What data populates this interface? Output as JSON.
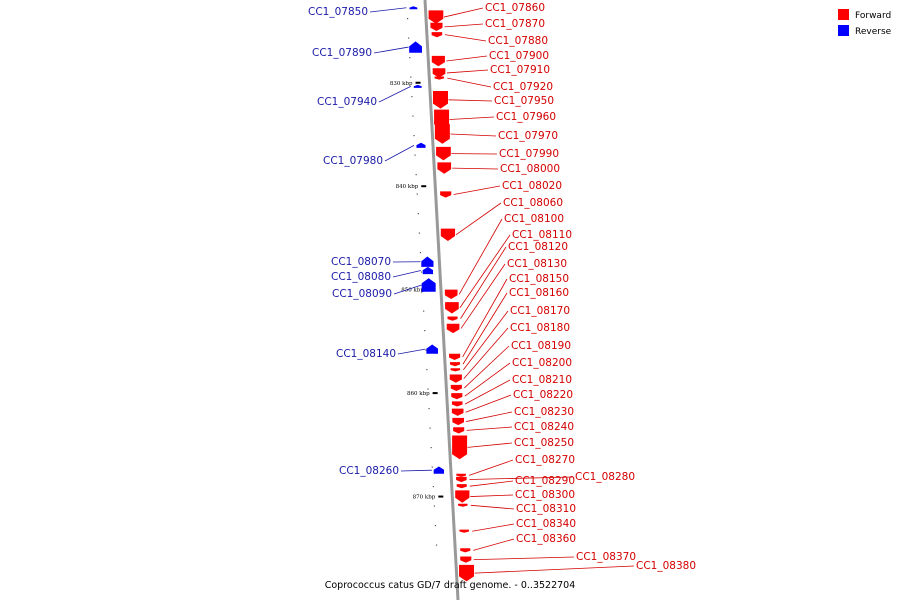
{
  "caption": "Coprococcus catus GD/7 draft genome. - 0..3522704",
  "legend": [
    {
      "label": "Forward",
      "color": "#ff0000"
    },
    {
      "label": "Reverse",
      "color": "#0000ff"
    }
  ],
  "colors": {
    "forward": "#ff0000",
    "reverse": "#0000ff",
    "forward_label": "#d40000",
    "reverse_label": "#1a1aa8",
    "axis": "#999999"
  },
  "ticks": [
    {
      "label": "830 kbp",
      "kbp": 830
    },
    {
      "label": "840 kbp",
      "kbp": 840
    },
    {
      "label": "850 kbp",
      "kbp": 850
    },
    {
      "label": "860 kbp",
      "kbp": 860
    },
    {
      "label": "870 kbp",
      "kbp": 870
    }
  ],
  "reverse_genes": [
    {
      "id": "CC1_07850",
      "kbp": 822.6,
      "len_kbp": 0.3
    },
    {
      "id": "CC1_07890",
      "kbp": 826.0,
      "len_kbp": 1.1
    },
    {
      "id": "CC1_07940",
      "kbp": 830.2,
      "len_kbp": 0.3
    },
    {
      "id": "CC1_07980",
      "kbp": 835.8,
      "len_kbp": 0.5
    },
    {
      "id": "CC1_08070",
      "kbp": 846.8,
      "len_kbp": 1.0
    },
    {
      "id": "CC1_08080",
      "kbp": 847.8,
      "len_kbp": 0.7
    },
    {
      "id": "CC1_08090",
      "kbp": 848.9,
      "len_kbp": 1.3
    },
    {
      "id": "CC1_08140",
      "kbp": 855.3,
      "len_kbp": 0.9
    },
    {
      "id": "CC1_08260",
      "kbp": 867.1,
      "len_kbp": 0.7
    }
  ],
  "forward_genes": [
    {
      "id": "CC1_07860",
      "kbp": 823.0,
      "len_kbp": 1.3
    },
    {
      "id": "CC1_07870",
      "kbp": 824.2,
      "len_kbp": 0.8
    },
    {
      "id": "CC1_07880",
      "kbp": 825.1,
      "len_kbp": 0.5
    },
    {
      "id": "CC1_07900",
      "kbp": 827.4,
      "len_kbp": 1.0
    },
    {
      "id": "CC1_07910",
      "kbp": 828.6,
      "len_kbp": 0.9
    },
    {
      "id": "CC1_07920",
      "kbp": 829.4,
      "len_kbp": 0.3
    },
    {
      "id": "CC1_07950",
      "kbp": 830.8,
      "len_kbp": 1.7
    },
    {
      "id": "CC1_07960",
      "kbp": 832.6,
      "len_kbp": 1.9
    },
    {
      "id": "CC1_07970",
      "kbp": 834.0,
      "len_kbp": 1.9
    },
    {
      "id": "CC1_07990",
      "kbp": 836.2,
      "len_kbp": 1.3
    },
    {
      "id": "CC1_08000",
      "kbp": 837.7,
      "len_kbp": 1.1
    },
    {
      "id": "CC1_08020",
      "kbp": 840.5,
      "len_kbp": 0.6
    },
    {
      "id": "CC1_08060",
      "kbp": 844.1,
      "len_kbp": 1.2
    },
    {
      "id": "CC1_08100",
      "kbp": 850.0,
      "len_kbp": 0.9
    },
    {
      "id": "CC1_08110",
      "kbp": 851.2,
      "len_kbp": 1.1
    },
    {
      "id": "CC1_08120",
      "kbp": 852.6,
      "len_kbp": 0.4
    },
    {
      "id": "CC1_08130",
      "kbp": 853.3,
      "len_kbp": 0.9
    },
    {
      "id": "CC1_08150",
      "kbp": 856.2,
      "len_kbp": 0.6
    },
    {
      "id": "CC1_08160",
      "kbp": 857.0,
      "len_kbp": 0.4
    },
    {
      "id": "CC1_08170",
      "kbp": 857.6,
      "len_kbp": 0.3
    },
    {
      "id": "CC1_08180",
      "kbp": 858.2,
      "len_kbp": 0.8
    },
    {
      "id": "CC1_08190",
      "kbp": 859.2,
      "len_kbp": 0.6
    },
    {
      "id": "CC1_08200",
      "kbp": 860.0,
      "len_kbp": 0.6
    },
    {
      "id": "CC1_08210",
      "kbp": 860.8,
      "len_kbp": 0.5
    },
    {
      "id": "CC1_08220",
      "kbp": 861.5,
      "len_kbp": 0.7
    },
    {
      "id": "CC1_08230",
      "kbp": 862.4,
      "len_kbp": 0.7
    },
    {
      "id": "CC1_08240",
      "kbp": 863.3,
      "len_kbp": 0.6
    },
    {
      "id": "CC1_08250",
      "kbp": 864.1,
      "len_kbp": 2.3
    },
    {
      "id": "CC1_08270",
      "kbp": 867.8,
      "len_kbp": 0.3
    },
    {
      "id": "CC1_08280",
      "kbp": 868.1,
      "len_kbp": 0.5
    },
    {
      "id": "CC1_08290",
      "kbp": 868.8,
      "len_kbp": 0.4
    },
    {
      "id": "CC1_08300",
      "kbp": 869.4,
      "len_kbp": 1.2
    },
    {
      "id": "CC1_08310",
      "kbp": 870.7,
      "len_kbp": 0.2
    },
    {
      "id": "CC1_08340",
      "kbp": 873.2,
      "len_kbp": 0.3
    },
    {
      "id": "CC1_08360",
      "kbp": 875.0,
      "len_kbp": 0.4
    },
    {
      "id": "CC1_08370",
      "kbp": 875.8,
      "len_kbp": 0.6
    },
    {
      "id": "CC1_08380",
      "kbp": 876.6,
      "len_kbp": 1.6
    }
  ]
}
